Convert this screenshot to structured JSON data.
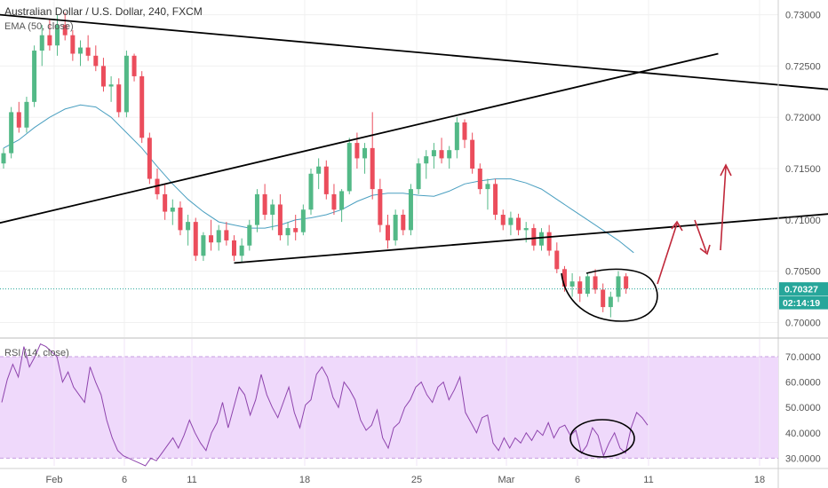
{
  "chart_data": [
    {
      "type": "candlestick",
      "title": "Australian Dollar / U.S. Dollar, 240, FXCM",
      "indicator_label": "EMA (50, close)",
      "ylim": [
        0.699,
        0.731
      ],
      "y_ticks": [
        "0.73000",
        "0.72500",
        "0.72000",
        "0.71500",
        "0.71000",
        "0.70500",
        "0.70000"
      ],
      "y_tick_values": [
        0.73,
        0.725,
        0.72,
        0.715,
        0.71,
        0.705,
        0.7
      ],
      "x_ticks": [
        "Feb",
        "6",
        "11",
        "18",
        "25",
        "Mar",
        "6",
        "11",
        "18"
      ],
      "last_price_label": "0.70327",
      "last_price": 0.70327,
      "countdown_label": "02:14:19",
      "colors": {
        "up": "#53b987",
        "down": "#eb4d5c",
        "ema": "#4a9fc0",
        "line": "#000000",
        "arrow": "#c0283a",
        "price_line": "#26a69a"
      },
      "candles": [
        [
          0.7155,
          0.717,
          0.715,
          0.7165
        ],
        [
          0.7165,
          0.721,
          0.716,
          0.7205
        ],
        [
          0.7205,
          0.7215,
          0.7185,
          0.719
        ],
        [
          0.719,
          0.722,
          0.7185,
          0.7215
        ],
        [
          0.7215,
          0.727,
          0.721,
          0.7265
        ],
        [
          0.7265,
          0.729,
          0.725,
          0.728
        ],
        [
          0.728,
          0.7295,
          0.7265,
          0.727
        ],
        [
          0.727,
          0.73,
          0.726,
          0.729
        ],
        [
          0.729,
          0.7302,
          0.7275,
          0.728
        ],
        [
          0.728,
          0.7285,
          0.7255,
          0.7262
        ],
        [
          0.7262,
          0.7275,
          0.725,
          0.7268
        ],
        [
          0.7268,
          0.728,
          0.7255,
          0.726
        ],
        [
          0.726,
          0.727,
          0.7245,
          0.725
        ],
        [
          0.725,
          0.7258,
          0.7225,
          0.723
        ],
        [
          0.723,
          0.724,
          0.7215,
          0.7232
        ],
        [
          0.7232,
          0.7238,
          0.72,
          0.7205
        ],
        [
          0.7205,
          0.7265,
          0.72,
          0.726
        ],
        [
          0.726,
          0.7262,
          0.7235,
          0.724
        ],
        [
          0.724,
          0.7245,
          0.7175,
          0.718
        ],
        [
          0.718,
          0.7185,
          0.7135,
          0.714
        ],
        [
          0.714,
          0.715,
          0.712,
          0.7125
        ],
        [
          0.7125,
          0.7135,
          0.71,
          0.7108
        ],
        [
          0.7108,
          0.712,
          0.7095,
          0.7112
        ],
        [
          0.7112,
          0.7118,
          0.7085,
          0.709
        ],
        [
          0.709,
          0.7105,
          0.7075,
          0.7098
        ],
        [
          0.7098,
          0.7102,
          0.706,
          0.7065
        ],
        [
          0.7065,
          0.7088,
          0.706,
          0.7085
        ],
        [
          0.7085,
          0.71,
          0.707,
          0.7078
        ],
        [
          0.7078,
          0.7095,
          0.707,
          0.709
        ],
        [
          0.709,
          0.7098,
          0.7075,
          0.708
        ],
        [
          0.708,
          0.7085,
          0.706,
          0.7065
        ],
        [
          0.7065,
          0.7082,
          0.7058,
          0.7075
        ],
        [
          0.7075,
          0.71,
          0.707,
          0.7095
        ],
        [
          0.7095,
          0.713,
          0.7088,
          0.7125
        ],
        [
          0.7125,
          0.7135,
          0.71,
          0.7105
        ],
        [
          0.7105,
          0.712,
          0.709,
          0.7115
        ],
        [
          0.7115,
          0.7125,
          0.708,
          0.7085
        ],
        [
          0.7085,
          0.7098,
          0.7075,
          0.7092
        ],
        [
          0.7092,
          0.7105,
          0.708,
          0.7088
        ],
        [
          0.7088,
          0.7115,
          0.7085,
          0.711
        ],
        [
          0.711,
          0.715,
          0.7105,
          0.7145
        ],
        [
          0.7145,
          0.716,
          0.713,
          0.7152
        ],
        [
          0.7152,
          0.7158,
          0.712,
          0.7125
        ],
        [
          0.7125,
          0.7135,
          0.7105,
          0.711
        ],
        [
          0.711,
          0.713,
          0.7098,
          0.7128
        ],
        [
          0.7128,
          0.718,
          0.7125,
          0.7175
        ],
        [
          0.7175,
          0.7185,
          0.715,
          0.716
        ],
        [
          0.716,
          0.7175,
          0.7145,
          0.717
        ],
        [
          0.717,
          0.7205,
          0.712,
          0.713
        ],
        [
          0.713,
          0.714,
          0.7088,
          0.7095
        ],
        [
          0.7095,
          0.7105,
          0.7072,
          0.708
        ],
        [
          0.708,
          0.711,
          0.7075,
          0.7105
        ],
        [
          0.7105,
          0.711,
          0.7085,
          0.709
        ],
        [
          0.709,
          0.7135,
          0.7085,
          0.713
        ],
        [
          0.713,
          0.716,
          0.7125,
          0.7155
        ],
        [
          0.7155,
          0.7168,
          0.714,
          0.7162
        ],
        [
          0.7162,
          0.7175,
          0.715,
          0.7168
        ],
        [
          0.7168,
          0.718,
          0.7155,
          0.716
        ],
        [
          0.716,
          0.7172,
          0.715,
          0.7168
        ],
        [
          0.7168,
          0.72,
          0.716,
          0.7195
        ],
        [
          0.7195,
          0.7198,
          0.717,
          0.7178
        ],
        [
          0.7178,
          0.7185,
          0.7145,
          0.715
        ],
        [
          0.715,
          0.7155,
          0.7125,
          0.713
        ],
        [
          0.713,
          0.714,
          0.711,
          0.7135
        ],
        [
          0.7135,
          0.714,
          0.71,
          0.7105
        ],
        [
          0.7105,
          0.711,
          0.709,
          0.7095
        ],
        [
          0.7095,
          0.7108,
          0.7085,
          0.7102
        ],
        [
          0.7102,
          0.7106,
          0.7085,
          0.709
        ],
        [
          0.709,
          0.7098,
          0.7078,
          0.7092
        ],
        [
          0.7092,
          0.7096,
          0.707,
          0.7075
        ],
        [
          0.7075,
          0.7092,
          0.707,
          0.7088
        ],
        [
          0.7088,
          0.7095,
          0.7065,
          0.707
        ],
        [
          0.707,
          0.7078,
          0.7048,
          0.7052
        ],
        [
          0.7052,
          0.7055,
          0.703,
          0.7035
        ],
        [
          0.7035,
          0.7048,
          0.7025,
          0.704
        ],
        [
          0.704,
          0.7045,
          0.702,
          0.7028
        ],
        [
          0.7028,
          0.7048,
          0.7025,
          0.7045
        ],
        [
          0.7045,
          0.7052,
          0.7028,
          0.7032
        ],
        [
          0.7032,
          0.7038,
          0.701,
          0.7015
        ],
        [
          0.7015,
          0.703,
          0.7005,
          0.7025
        ],
        [
          0.7025,
          0.705,
          0.702,
          0.7045
        ],
        [
          0.7045,
          0.7048,
          0.7028,
          0.7033
        ]
      ],
      "ema": [
        0.717,
        0.7178,
        0.719,
        0.72,
        0.7208,
        0.7212,
        0.721,
        0.72,
        0.7185,
        0.717,
        0.7152,
        0.7135,
        0.712,
        0.7108,
        0.7098,
        0.7095,
        0.7092,
        0.7092,
        0.7095,
        0.71,
        0.7102,
        0.7105,
        0.711,
        0.7118,
        0.7124,
        0.7126,
        0.7126,
        0.7124,
        0.7123,
        0.7128,
        0.7135,
        0.7138,
        0.714,
        0.714,
        0.7136,
        0.713,
        0.712,
        0.711,
        0.71,
        0.709,
        0.708,
        0.7068
      ],
      "trendlines": [
        {
          "from": [
            -0.5,
            0.73
          ],
          "to": [
            118,
            0.722
          ]
        },
        {
          "from": [
            -0.5,
            0.7097
          ],
          "to": [
            93,
            0.7262
          ]
        },
        {
          "from": [
            30,
            0.7058
          ],
          "to": [
            111,
            0.7108
          ]
        }
      ]
    },
    {
      "type": "line",
      "title": "RSI (14, close)",
      "ylim": [
        27,
        77
      ],
      "y_ticks": [
        "70.0000",
        "60.0000",
        "50.0000",
        "40.0000",
        "30.0000"
      ],
      "y_tick_values": [
        70,
        60,
        50,
        40,
        30
      ],
      "band": [
        30,
        70
      ],
      "x_ticks": [
        "Feb",
        "6",
        "11",
        "18",
        "25",
        "Mar",
        "6",
        "11",
        "18"
      ],
      "colors": {
        "line": "#8e44ad",
        "band": "#efd9fb"
      },
      "values": [
        52,
        61,
        67,
        62,
        74,
        66,
        70,
        75,
        74,
        72,
        70,
        60,
        64,
        58,
        55,
        52,
        66,
        60,
        55,
        45,
        38,
        33,
        31,
        30,
        29,
        28,
        27,
        30,
        29,
        32,
        35,
        38,
        34,
        39,
        45,
        40,
        36,
        33,
        40,
        44,
        52,
        42,
        50,
        58,
        55,
        47,
        53,
        63,
        55,
        50,
        46,
        52,
        58,
        48,
        42,
        51,
        53,
        63,
        66,
        62,
        54,
        50,
        60,
        57,
        53,
        45,
        41,
        43,
        49,
        38,
        34,
        42,
        44,
        50,
        53,
        58,
        60,
        55,
        52,
        58,
        60,
        53,
        57,
        62,
        48,
        44,
        40,
        46,
        47,
        36,
        33,
        38,
        34,
        38,
        36,
        40,
        37,
        41,
        39,
        44,
        38,
        42,
        43,
        39,
        41,
        32,
        35,
        42,
        39,
        31,
        36,
        40,
        34,
        32,
        42,
        48,
        46,
        43
      ]
    }
  ]
}
